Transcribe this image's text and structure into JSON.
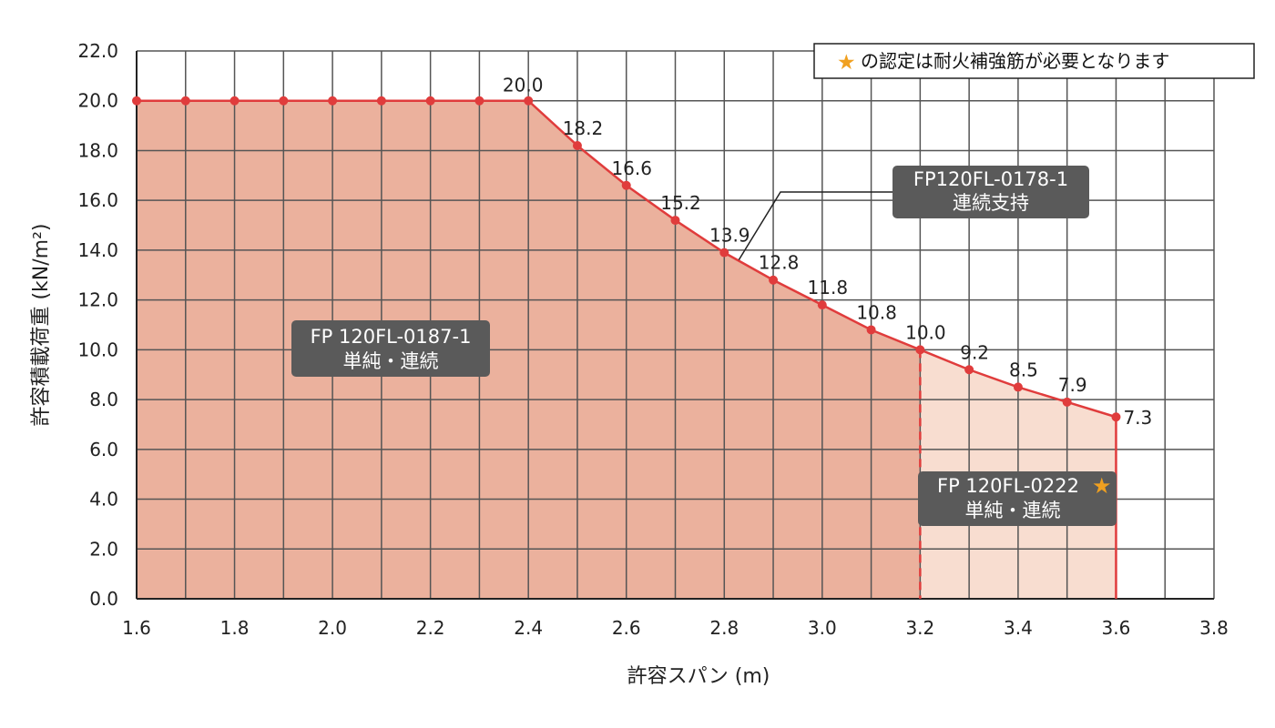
{
  "chart_data": {
    "type": "area",
    "xlabel": "許容スパン (m)",
    "ylabel": "許容積載荷重 (kN/m²)",
    "xlim": [
      1.6,
      3.8
    ],
    "ylim": [
      0,
      22
    ],
    "x_ticks": [
      "1.6",
      "1.8",
      "2.0",
      "2.2",
      "2.4",
      "2.6",
      "2.8",
      "3.0",
      "3.2",
      "3.4",
      "3.6",
      "3.8"
    ],
    "y_ticks": [
      "0.0",
      "2.0",
      "4.0",
      "6.0",
      "8.0",
      "10.0",
      "12.0",
      "14.0",
      "16.0",
      "18.0",
      "20.0",
      "22.0"
    ],
    "grid": true,
    "series": [
      {
        "x": [
          1.6,
          1.7,
          1.8,
          1.9,
          2.0,
          2.1,
          2.2,
          2.3,
          2.4,
          2.5,
          2.6,
          2.7,
          2.8,
          2.9,
          3.0,
          3.1,
          3.2,
          3.3,
          3.4,
          3.5,
          3.6
        ],
        "values": [
          20.0,
          20.0,
          20.0,
          20.0,
          20.0,
          20.0,
          20.0,
          20.0,
          20.0,
          18.2,
          16.6,
          15.2,
          13.9,
          12.8,
          11.8,
          10.8,
          10.0,
          9.2,
          8.5,
          7.9,
          7.3
        ],
        "color": "#e03c3c"
      }
    ],
    "data_labels": [
      {
        "x": 2.4,
        "y": 20.0,
        "text": "20.0"
      },
      {
        "x": 2.5,
        "y": 18.2,
        "text": "18.2"
      },
      {
        "x": 2.6,
        "y": 16.6,
        "text": "16.6"
      },
      {
        "x": 2.7,
        "y": 15.2,
        "text": "15.2"
      },
      {
        "x": 2.8,
        "y": 13.9,
        "text": "13.9"
      },
      {
        "x": 2.9,
        "y": 12.8,
        "text": "12.8"
      },
      {
        "x": 3.0,
        "y": 11.8,
        "text": "11.8"
      },
      {
        "x": 3.1,
        "y": 10.8,
        "text": "10.8"
      },
      {
        "x": 3.2,
        "y": 10.0,
        "text": "10.0"
      },
      {
        "x": 3.3,
        "y": 9.2,
        "text": "9.2"
      },
      {
        "x": 3.4,
        "y": 8.5,
        "text": "8.5"
      },
      {
        "x": 3.5,
        "y": 7.9,
        "text": "7.9"
      },
      {
        "x": 3.6,
        "y": 7.3,
        "text": "7.3"
      }
    ],
    "regions": [
      {
        "x_from": 1.6,
        "x_to": 3.2,
        "color": "#ebb19d",
        "line1": "FP 120FL-0187-1",
        "line2": "単純・連続"
      },
      {
        "x_from": 3.2,
        "x_to": 3.6,
        "color": "#f8ddd0",
        "line1": "FP 120FL-0222",
        "line2": "単純・連続",
        "star": "★"
      }
    ],
    "callout": {
      "line1": "FP120FL-0178-1",
      "line2": "連続支持",
      "x": 2.8,
      "y": 13.9
    },
    "note": {
      "star": "★",
      "text": "の認定は耐火補強筋が必要となります"
    },
    "colors": {
      "line": "#e03c3c",
      "grid": "#555555",
      "label_box": "#5a5a5a",
      "star": "#f0a020"
    }
  }
}
